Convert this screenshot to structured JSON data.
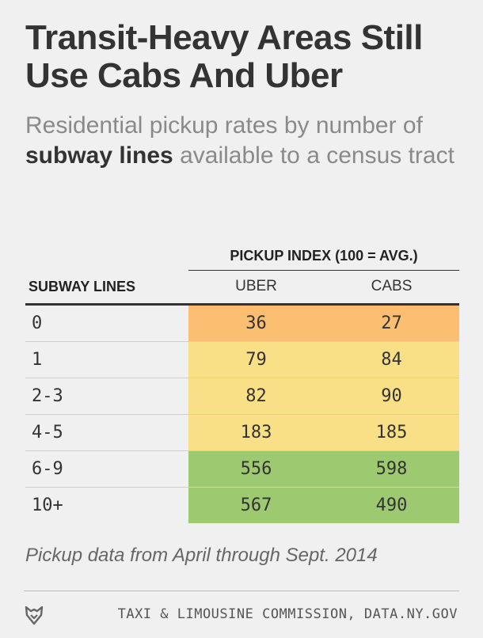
{
  "title": "Transit-Heavy Areas Still Use Cabs And Uber",
  "subtitle": {
    "part1": "Residential pickup rates by number of ",
    "bold": "subway lines",
    "part2": " available to a census tract"
  },
  "colors": {
    "low": "#fcbf72",
    "mid": "#f9df85",
    "high": "#9dc971"
  },
  "chart_data": {
    "type": "table",
    "group_header": "PICKUP INDEX (100 = AVG.)",
    "columns": [
      "SUBWAY LINES",
      "UBER",
      "CABS"
    ],
    "rows": [
      {
        "lines": "0",
        "uber": 36,
        "cabs": 27
      },
      {
        "lines": "1",
        "uber": 79,
        "cabs": 84
      },
      {
        "lines": "2-3",
        "uber": 82,
        "cabs": 90
      },
      {
        "lines": "4-5",
        "uber": 183,
        "cabs": 185
      },
      {
        "lines": "6-9",
        "uber": 556,
        "cabs": 598
      },
      {
        "lines": "10+",
        "uber": 567,
        "cabs": 490
      }
    ]
  },
  "note": "Pickup data from April through Sept. 2014",
  "footer": {
    "logo_icon": "fivethirtyeight-fox-icon",
    "source": "TAXI & LIMOUSINE COMMISSION, DATA.NY.GOV"
  }
}
